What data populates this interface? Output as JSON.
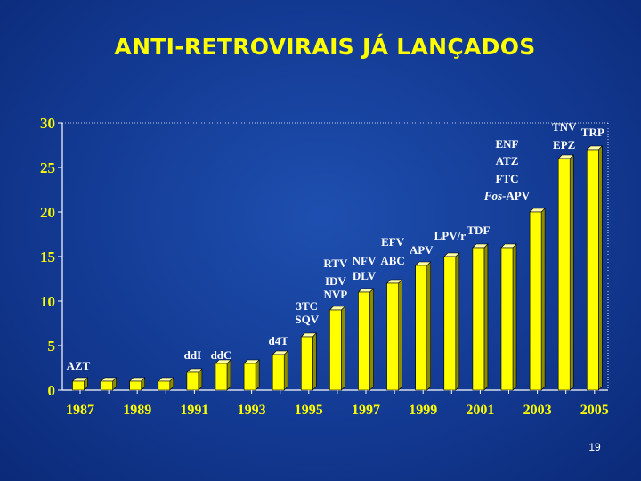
{
  "slide": {
    "title": "ANTI-RETROVIRAIS JÁ LANÇADOS",
    "page_number": "19"
  },
  "colors": {
    "background": "#133a93",
    "title": "#ffff00",
    "tick_labels": "#ffff00",
    "annotations": "#ffffff",
    "bar_front": "#ffff00",
    "bar_side": "#8c8c00",
    "bar_top": "#ffffaa"
  },
  "chart_data": {
    "type": "bar",
    "style": "3d",
    "title": "ANTI-RETROVIRAIS JÁ LANÇADOS",
    "xlabel": "",
    "ylabel": "",
    "ylim": [
      0,
      30
    ],
    "yticks": [
      "0",
      "5",
      "10",
      "15",
      "20",
      "25",
      "30"
    ],
    "grid": false,
    "legend": false,
    "categories": [
      "1987",
      "1988",
      "1989",
      "1990",
      "1991",
      "1992",
      "1993",
      "1994",
      "1995",
      "1996",
      "1997",
      "1998",
      "1999",
      "2000",
      "2001",
      "2002",
      "2003",
      "2004",
      "2005"
    ],
    "xtick_labels": [
      "1987",
      "1989",
      "1991",
      "1993",
      "1995",
      "1997",
      "1999",
      "2001",
      "2003",
      "2005"
    ],
    "values": [
      1,
      1,
      1,
      1,
      2,
      3,
      3,
      4,
      6,
      9,
      11,
      12,
      14,
      15,
      16,
      16,
      20,
      26,
      27
    ],
    "annotations": [
      {
        "id": "azt",
        "text": "AZT",
        "category": "1987",
        "value": 2.3
      },
      {
        "id": "ddi",
        "text": "ddI",
        "category": "1991",
        "value": 3.5
      },
      {
        "id": "ddc",
        "text": "ddC",
        "category": "1992",
        "value": 3.5
      },
      {
        "id": "d4t",
        "text": "d4T",
        "category": "1994",
        "value": 5.1
      },
      {
        "id": "3tc",
        "text": "3TC",
        "category": "1995",
        "value": 9.0
      },
      {
        "id": "sqv",
        "text": "SQV",
        "category": "1995",
        "value": 7.5
      },
      {
        "id": "rtv",
        "text": "RTV",
        "category": "1996",
        "value": 13.8
      },
      {
        "id": "idv",
        "text": "IDV",
        "category": "1996",
        "value": 11.8
      },
      {
        "id": "nvp",
        "text": "NVP",
        "category": "1996",
        "value": 10.3
      },
      {
        "id": "nfv",
        "text": "NFV",
        "category": "1997",
        "value": 14.1
      },
      {
        "id": "dlv",
        "text": "DLV",
        "category": "1997",
        "value": 12.4
      },
      {
        "id": "abc",
        "text": "ABC",
        "category": "1998",
        "value": 14.1
      },
      {
        "id": "efv",
        "text": "EFV",
        "category": "1998",
        "value": 16.2
      },
      {
        "id": "apv",
        "text": "APV",
        "category": "1999",
        "value": 15.3
      },
      {
        "id": "lpvr",
        "text": "LPV/r",
        "category": "2000",
        "value": 16.9
      },
      {
        "id": "tdf",
        "text": "TDF",
        "category": "2001",
        "value": 17.5
      },
      {
        "id": "enf",
        "text": "ENF",
        "category": "2002",
        "value": 27.2
      },
      {
        "id": "atz",
        "text": "ATZ",
        "category": "2002",
        "value": 25.3
      },
      {
        "id": "ftc",
        "text": "FTC",
        "category": "2002",
        "value": 23.3
      },
      {
        "id": "fosapv",
        "text": "-APV",
        "prefix_italic": "Fos",
        "category": "2002",
        "value": 21.4
      },
      {
        "id": "tnv",
        "text": "TNV",
        "category": "2004",
        "value": 29.1
      },
      {
        "id": "trp",
        "text": "TRP",
        "category": "2005",
        "value": 28.5
      },
      {
        "id": "epz",
        "text": "EPZ",
        "category": "2004",
        "value": 27.1
      }
    ]
  }
}
